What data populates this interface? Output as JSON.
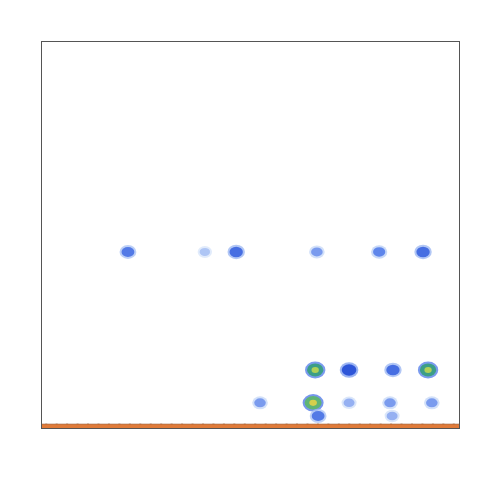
{
  "chart_data": {
    "type": "heatmap",
    "xlim": [
      0,
      100
    ],
    "ylim": [
      0,
      100
    ],
    "zlim": [
      0,
      1
    ],
    "grid": false,
    "tick_labels": false,
    "cells": [
      [
        20.8,
        45.5,
        0.4
      ],
      [
        39.2,
        45.5,
        0.2
      ],
      [
        46.7,
        45.5,
        0.45
      ],
      [
        66.0,
        45.5,
        0.3
      ],
      [
        80.9,
        45.5,
        0.35
      ],
      [
        91.4,
        45.5,
        0.45
      ],
      [
        65.6,
        15.0,
        0.7
      ],
      [
        73.7,
        15.0,
        0.55
      ],
      [
        84.2,
        15.0,
        0.45
      ],
      [
        92.6,
        15.0,
        0.7
      ],
      [
        52.4,
        6.5,
        0.3
      ],
      [
        65.1,
        6.5,
        0.75
      ],
      [
        73.7,
        6.5,
        0.25
      ],
      [
        83.5,
        6.5,
        0.3
      ],
      [
        93.5,
        6.5,
        0.3
      ],
      [
        66.3,
        3.1,
        0.4
      ],
      [
        84.0,
        3.1,
        0.25
      ],
      [
        0,
        0.5,
        1
      ],
      [
        2.5,
        0.5,
        1
      ],
      [
        5,
        0.5,
        1
      ],
      [
        7.5,
        0.5,
        1
      ],
      [
        10,
        0.5,
        1
      ],
      [
        12.5,
        0.5,
        1
      ],
      [
        15,
        0.5,
        1
      ],
      [
        17.5,
        0.5,
        1
      ],
      [
        20,
        0.5,
        1
      ],
      [
        22.5,
        0.5,
        1
      ],
      [
        25,
        0.5,
        1
      ],
      [
        27.5,
        0.5,
        1
      ],
      [
        30,
        0.5,
        1
      ],
      [
        32.5,
        0.5,
        1
      ],
      [
        35,
        0.5,
        1
      ],
      [
        37.5,
        0.5,
        1
      ],
      [
        40,
        0.5,
        1
      ],
      [
        42.5,
        0.5,
        1
      ],
      [
        45,
        0.5,
        1
      ],
      [
        47.5,
        0.5,
        1
      ],
      [
        50,
        0.5,
        1
      ],
      [
        52.5,
        0.5,
        1
      ],
      [
        55,
        0.5,
        1
      ],
      [
        57.5,
        0.5,
        1
      ],
      [
        60,
        0.5,
        1
      ],
      [
        62.5,
        0.5,
        1
      ],
      [
        65,
        0.5,
        1
      ],
      [
        67.5,
        0.5,
        1
      ],
      [
        70,
        0.5,
        1
      ],
      [
        72.5,
        0.5,
        1
      ],
      [
        75,
        0.5,
        1
      ],
      [
        77.5,
        0.5,
        1
      ],
      [
        80,
        0.5,
        1
      ],
      [
        82.5,
        0.5,
        1
      ],
      [
        85,
        0.5,
        1
      ],
      [
        87.5,
        0.5,
        1
      ],
      [
        90,
        0.5,
        1
      ],
      [
        92.5,
        0.5,
        1
      ],
      [
        95,
        0.5,
        1
      ],
      [
        97.5,
        0.5,
        1
      ],
      [
        100,
        0.5,
        1
      ]
    ]
  }
}
